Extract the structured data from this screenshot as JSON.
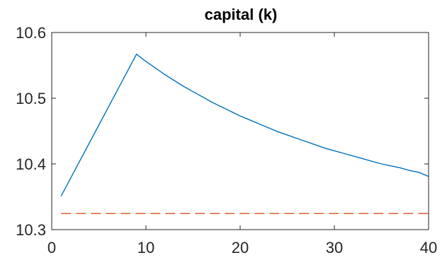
{
  "chart_data": {
    "type": "line",
    "title": "capital (k)",
    "xlabel": "",
    "ylabel": "",
    "xlim": [
      0,
      40
    ],
    "ylim": [
      10.3,
      10.6
    ],
    "x_ticks": [
      0,
      10,
      20,
      30,
      40
    ],
    "y_ticks": [
      10.3,
      10.4,
      10.5,
      10.6
    ],
    "x_tick_labels": [
      "0",
      "10",
      "20",
      "30",
      "40"
    ],
    "y_tick_labels": [
      "10.3",
      "10.4",
      "10.5",
      "10.6"
    ],
    "grid": false,
    "series": [
      {
        "style": "solid",
        "color": "#0072BD",
        "x": [
          1,
          2,
          3,
          4,
          5,
          6,
          7,
          8,
          9,
          10,
          11,
          12,
          13,
          14,
          15,
          16,
          17,
          18,
          19,
          20,
          21,
          22,
          23,
          24,
          25,
          26,
          27,
          28,
          29,
          30,
          31,
          32,
          33,
          34,
          35,
          36,
          37,
          38,
          39,
          40
        ],
        "values": [
          10.351,
          10.378,
          10.405,
          10.432,
          10.459,
          10.486,
          10.513,
          10.54,
          10.567,
          10.556,
          10.546,
          10.536,
          10.527,
          10.518,
          10.51,
          10.502,
          10.494,
          10.487,
          10.48,
          10.473,
          10.467,
          10.461,
          10.455,
          10.449,
          10.444,
          10.439,
          10.434,
          10.429,
          10.424,
          10.42,
          10.416,
          10.412,
          10.408,
          10.404,
          10.4,
          10.397,
          10.394,
          10.39,
          10.387,
          10.381
        ]
      },
      {
        "style": "dashed",
        "color": "#D95319",
        "x": [
          1,
          40
        ],
        "values": [
          10.3245,
          10.3245
        ]
      }
    ]
  }
}
